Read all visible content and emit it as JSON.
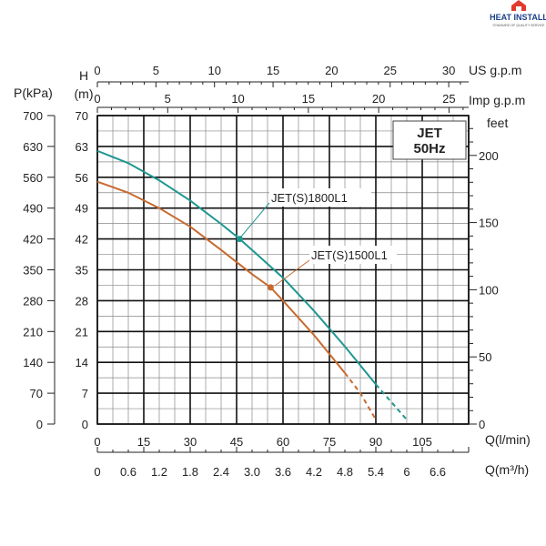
{
  "logo": {
    "text": "HEAT INSTALL",
    "subtext": "STANDARD OF QUALITY SERVICE"
  },
  "box": {
    "line1": "JET",
    "line2": "50Hz"
  },
  "axes": {
    "left_kpa": {
      "title": "P(kPa)",
      "ticks": [
        "0",
        "70",
        "140",
        "210",
        "280",
        "350",
        "420",
        "490",
        "560",
        "630",
        "700"
      ]
    },
    "left_m": {
      "title": "H",
      "unit": "(m)",
      "ticks": [
        "0",
        "7",
        "14",
        "21",
        "28",
        "35",
        "42",
        "49",
        "56",
        "63",
        "70"
      ]
    },
    "right_feet": {
      "title": "feet",
      "ticks": [
        "0",
        "50",
        "100",
        "150",
        "200"
      ]
    },
    "top_us": {
      "title": "US g.p.m",
      "ticks": [
        "0",
        "5",
        "10",
        "15",
        "20",
        "25",
        "30"
      ]
    },
    "top_imp": {
      "title": "Imp g.p.m",
      "ticks": [
        "0",
        "5",
        "10",
        "15",
        "20",
        "25"
      ]
    },
    "bottom_lmin": {
      "title": "Q(l/min)",
      "ticks": [
        "0",
        "15",
        "30",
        "45",
        "60",
        "75",
        "90",
        "105"
      ]
    },
    "bottom_m3h": {
      "title": "Q(m³/h)",
      "ticks": [
        "0",
        "0.6",
        "1.2",
        "1.8",
        "2.4",
        "3.0",
        "3.6",
        "4.2",
        "4.8",
        "5.4",
        "6",
        "6.6"
      ]
    }
  },
  "chart_data": {
    "type": "line",
    "x_unit": "l/min",
    "y_unit": "m",
    "xlim": [
      0,
      120
    ],
    "ylim": [
      0,
      70
    ],
    "grid": true,
    "series": [
      {
        "name": "JET(S)1800L1",
        "color": "#1f9690",
        "x": [
          0,
          10,
          20,
          30,
          40,
          46,
          50,
          60,
          70,
          80,
          90,
          95,
          100
        ],
        "y": [
          62,
          59.2,
          55.3,
          50.7,
          45.4,
          42,
          39.5,
          33.2,
          25.7,
          17.6,
          9,
          5,
          1
        ],
        "marker": {
          "x": 46,
          "y": 42
        }
      },
      {
        "name": "JET(S)1500L1",
        "color": "#c8692f",
        "x": [
          0,
          10,
          20,
          30,
          40,
          50,
          56,
          60,
          70,
          80,
          85,
          90
        ],
        "y": [
          55,
          52.5,
          49,
          44.8,
          39.5,
          34,
          31,
          28,
          20.2,
          11.6,
          7,
          1
        ],
        "marker": {
          "x": 56,
          "y": 31
        }
      }
    ]
  }
}
